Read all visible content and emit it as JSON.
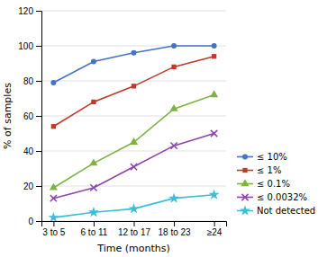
{
  "chart_data": {
    "type": "line",
    "categories": [
      "3 to 5",
      "6 to 11",
      "12 to 17",
      "18 to 23",
      "≥24"
    ],
    "series": [
      {
        "name": "≤ 10%",
        "color": "#4472C4",
        "marker": "circle",
        "values": [
          79,
          91,
          96,
          100,
          100
        ]
      },
      {
        "name": "≤ 1%",
        "color": "#C0392B",
        "marker": "square",
        "values": [
          54,
          68,
          77,
          88,
          94
        ]
      },
      {
        "name": "≤ 0.1%",
        "color": "#7CB342",
        "marker": "triangle",
        "values": [
          19,
          33,
          45,
          64,
          72
        ]
      },
      {
        "name": "≤ 0.0032%",
        "color": "#8E44AD",
        "marker": "x",
        "values": [
          13,
          19,
          31,
          43,
          50
        ]
      },
      {
        "name": "Not detected",
        "color": "#3BBFD4",
        "marker": "star",
        "values": [
          2,
          5,
          7,
          13,
          15
        ]
      }
    ],
    "xlabel": "Time (months)",
    "ylabel": "% of samples",
    "ylim": [
      0,
      120
    ],
    "yticks": [
      0,
      20,
      40,
      60,
      80,
      100,
      120
    ],
    "grid": "y",
    "legend": "lower right"
  }
}
